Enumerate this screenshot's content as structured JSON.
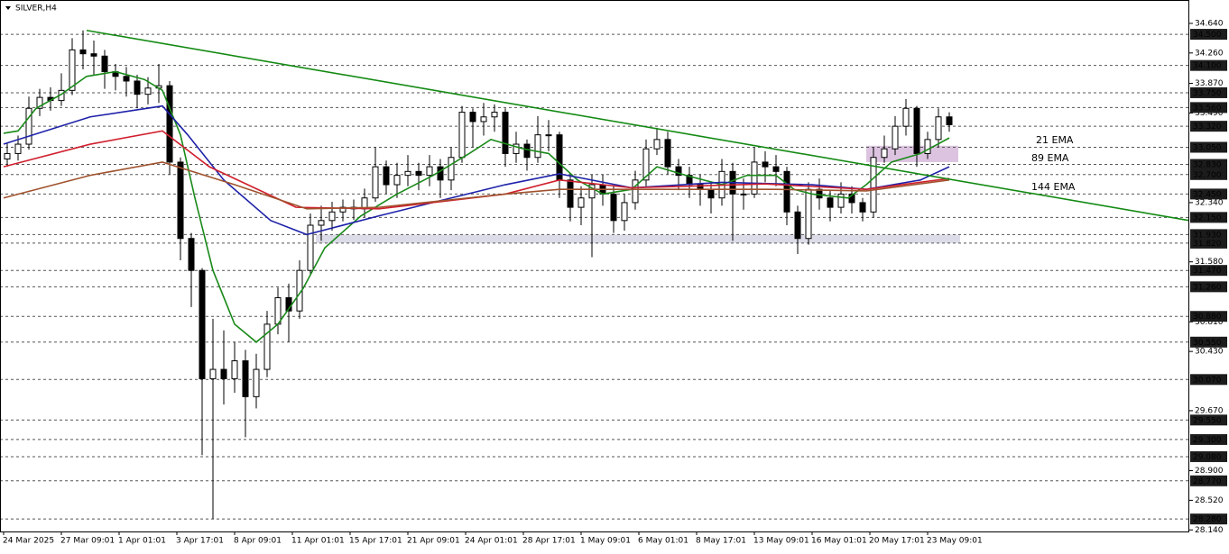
{
  "chart_data": {
    "type": "candlestick",
    "title": "SILVER,H4",
    "x": [
      1,
      4,
      7,
      10,
      13,
      16,
      19,
      22,
      25,
      28,
      31,
      34,
      37,
      40,
      43,
      46,
      49,
      52,
      55,
      58,
      61,
      64,
      67,
      70,
      73,
      76,
      79,
      82,
      85,
      88,
      91,
      94,
      97,
      100,
      103,
      106,
      109,
      112,
      115,
      118,
      121,
      124,
      127,
      130,
      133,
      136,
      139,
      142,
      145,
      148,
      151,
      154,
      157,
      160,
      163,
      166,
      169,
      172,
      175,
      178,
      181,
      184,
      187,
      190,
      193,
      196,
      199,
      202,
      205,
      208,
      211,
      214,
      217,
      220,
      223,
      226,
      229,
      232,
      235,
      238,
      241,
      244,
      247,
      250,
      253,
      256,
      259,
      262
    ],
    "open": [
      32.9,
      32.97,
      33.09,
      33.55,
      33.69,
      33.65,
      33.78,
      34.3,
      34.25,
      34.22,
      34.02,
      33.96,
      33.9,
      33.73,
      33.81,
      33.84,
      32.86,
      31.88,
      31.47,
      30.08,
      30.2,
      30.08,
      30.31,
      29.85,
      30.2,
      30.78,
      31.12,
      30.95,
      31.47,
      32.05,
      32.11,
      32.22,
      32.28,
      32.26,
      32.4,
      32.8,
      32.57,
      32.69,
      32.74,
      32.69,
      32.8,
      32.63,
      32.92,
      33.5,
      33.38,
      33.44,
      33.5,
      32.97,
      33.09,
      32.92,
      33.21,
      33.21,
      32.63,
      32.28,
      32.4,
      32.57,
      32.45,
      32.11,
      32.34,
      32.63,
      33.03,
      33.15,
      32.8,
      32.69,
      32.57,
      32.51,
      32.4,
      32.74,
      32.45,
      32.45,
      32.86,
      32.8,
      32.74,
      32.22,
      31.88,
      32.51,
      32.4,
      32.28,
      32.45,
      32.34,
      32.22,
      32.92,
      33.03,
      33.32,
      33.55,
      32.97,
      33.15,
      33.44
    ],
    "high": [
      33.1,
      33.2,
      33.7,
      33.8,
      33.82,
      34.0,
      34.45,
      34.55,
      34.42,
      34.3,
      34.12,
      34.08,
      33.98,
      33.95,
      34.12,
      33.9,
      32.92,
      31.95,
      31.5,
      30.85,
      30.7,
      30.55,
      30.45,
      30.4,
      30.95,
      31.25,
      31.3,
      31.6,
      32.2,
      32.3,
      32.35,
      32.38,
      32.38,
      32.52,
      33.05,
      32.88,
      32.85,
      32.95,
      32.85,
      32.95,
      32.9,
      33.05,
      33.58,
      33.55,
      33.62,
      33.6,
      33.55,
      33.25,
      33.15,
      33.45,
      33.4,
      33.25,
      32.7,
      32.55,
      32.7,
      32.7,
      32.55,
      32.45,
      32.75,
      33.15,
      33.3,
      33.25,
      32.9,
      32.8,
      32.7,
      32.6,
      32.9,
      32.85,
      32.65,
      33.05,
      33.0,
      32.95,
      32.8,
      32.3,
      32.6,
      32.65,
      32.5,
      32.6,
      32.55,
      32.4,
      33.05,
      33.2,
      33.45,
      33.67,
      33.58,
      33.25,
      33.55,
      33.5
    ],
    "low": [
      32.8,
      32.88,
      33.02,
      33.45,
      33.52,
      33.58,
      33.72,
      34.05,
      33.98,
      33.8,
      33.78,
      33.7,
      33.55,
      33.6,
      33.62,
      32.7,
      31.6,
      31.0,
      29.1,
      28.28,
      29.75,
      29.9,
      29.33,
      29.7,
      30.1,
      30.65,
      30.55,
      30.85,
      31.4,
      31.85,
      31.98,
      32.1,
      32.12,
      32.15,
      32.35,
      32.45,
      32.4,
      32.55,
      32.5,
      32.55,
      32.4,
      32.5,
      32.85,
      33.05,
      33.2,
      33.25,
      32.8,
      32.85,
      32.75,
      32.85,
      33.0,
      32.4,
      32.1,
      32.05,
      31.64,
      32.3,
      31.95,
      31.98,
      32.25,
      32.55,
      32.95,
      32.7,
      32.5,
      32.4,
      32.3,
      32.2,
      32.3,
      31.85,
      32.25,
      32.4,
      32.6,
      32.55,
      32.05,
      31.68,
      31.8,
      32.25,
      32.1,
      32.2,
      32.2,
      32.1,
      32.15,
      32.85,
      32.95,
      33.2,
      32.8,
      32.9,
      33.05,
      33.25
    ],
    "close": [
      32.97,
      33.09,
      33.55,
      33.69,
      33.65,
      33.78,
      34.3,
      34.25,
      34.22,
      34.02,
      33.96,
      33.9,
      33.73,
      33.81,
      33.84,
      32.86,
      31.88,
      31.47,
      30.08,
      30.2,
      30.08,
      30.31,
      29.85,
      30.2,
      30.78,
      31.12,
      30.95,
      31.47,
      32.05,
      32.11,
      32.22,
      32.28,
      32.26,
      32.4,
      32.8,
      32.57,
      32.69,
      32.74,
      32.69,
      32.8,
      32.63,
      32.92,
      33.5,
      33.38,
      33.44,
      33.5,
      32.97,
      33.09,
      32.92,
      33.21,
      33.21,
      32.63,
      32.28,
      32.4,
      32.57,
      32.45,
      32.11,
      32.34,
      32.63,
      33.03,
      33.15,
      32.8,
      32.69,
      32.57,
      32.51,
      32.4,
      32.74,
      32.45,
      32.45,
      32.86,
      32.8,
      32.74,
      32.22,
      31.88,
      32.51,
      32.4,
      32.28,
      32.45,
      32.34,
      32.22,
      32.92,
      33.03,
      33.32,
      33.55,
      32.97,
      33.15,
      33.44,
      33.34
    ],
    "candle_color": "#000000",
    "up_fill": "#ffffff",
    "xlim": [
      -1,
      328.5
    ],
    "ylim": [
      28.12,
      34.94
    ],
    "xticks": [
      {
        "value": 0,
        "label": "24 Mar 2025"
      },
      {
        "value": 16,
        "label": "27 Mar 09:01"
      },
      {
        "value": 32,
        "label": "1 Apr 01:01"
      },
      {
        "value": 48,
        "label": "3 Apr 17:01"
      },
      {
        "value": 64,
        "label": "8 Apr 09:01"
      },
      {
        "value": 80,
        "label": "11 Apr 01:01"
      },
      {
        "value": 96,
        "label": "15 Apr 17:01"
      },
      {
        "value": 112,
        "label": "21 Apr 09:01"
      },
      {
        "value": 128,
        "label": "24 Apr 01:01"
      },
      {
        "value": 144,
        "label": "28 Apr 17:01"
      },
      {
        "value": 160,
        "label": "1 May 09:01"
      },
      {
        "value": 176,
        "label": "6 May 01:01"
      },
      {
        "value": 192,
        "label": "8 May 17:01"
      },
      {
        "value": 208,
        "label": "13 May 09:01"
      },
      {
        "value": 224,
        "label": "16 May 01:01"
      },
      {
        "value": 240,
        "label": "20 May 17:01"
      },
      {
        "value": 256,
        "label": "23 May 09:01"
      }
    ],
    "yticks": [
      {
        "value": 34.64,
        "label": "34.640"
      },
      {
        "value": 34.26,
        "label": "34.260"
      },
      {
        "value": 33.87,
        "label": "33.870"
      },
      {
        "value": 33.49,
        "label": "33.490"
      },
      {
        "value": 32.34,
        "label": "32.340"
      },
      {
        "value": 31.58,
        "label": "31.580"
      },
      {
        "value": 30.81,
        "label": "30.810"
      },
      {
        "value": 30.43,
        "label": "30.430"
      },
      {
        "value": 29.67,
        "label": "29.670"
      },
      {
        "value": 28.9,
        "label": "28.900"
      },
      {
        "value": 28.52,
        "label": "28.520"
      },
      {
        "value": 28.14,
        "label": "28.140"
      }
    ],
    "levels": [
      {
        "value": 34.5,
        "label": "34.500"
      },
      {
        "value": 34.1,
        "label": "34.100"
      },
      {
        "value": 33.75,
        "label": "33.750"
      },
      {
        "value": 33.56,
        "label": "33.560"
      },
      {
        "value": 33.32,
        "label": "33.320"
      },
      {
        "value": 33.05,
        "label": "33.050"
      },
      {
        "value": 32.83,
        "label": "32.830"
      },
      {
        "value": 32.7,
        "label": "32.700"
      },
      {
        "value": 32.45,
        "label": "32.450"
      },
      {
        "value": 32.15,
        "label": "32.150"
      },
      {
        "value": 31.93,
        "label": "31.930"
      },
      {
        "value": 31.82,
        "label": "31.820"
      },
      {
        "value": 31.47,
        "label": "31.470"
      },
      {
        "value": 31.26,
        "label": "31.260"
      },
      {
        "value": 30.88,
        "label": "30.880"
      },
      {
        "value": 30.55,
        "label": "30.550"
      },
      {
        "value": 30.07,
        "label": "30.070"
      },
      {
        "value": 29.55,
        "label": "29.550"
      },
      {
        "value": 29.3,
        "label": "29.300"
      },
      {
        "value": 29.08,
        "label": "29.080"
      },
      {
        "value": 28.77,
        "label": "28.770"
      },
      {
        "value": 28.28,
        "label": "28.280"
      }
    ],
    "series": [
      {
        "name": "21 EMA",
        "color": "#1a8a1a",
        "x": [
          0,
          4,
          9,
          16,
          23,
          31,
          39,
          44,
          49,
          53,
          58,
          64,
          70,
          76,
          83,
          89,
          99,
          109,
          119,
          129,
          135,
          144,
          151,
          159,
          166,
          174,
          181,
          189,
          199,
          206,
          214,
          219,
          224,
          234,
          239,
          246,
          254,
          262
        ],
        "values": [
          33.23,
          33.26,
          33.55,
          33.73,
          33.96,
          34.02,
          33.92,
          33.78,
          33.21,
          32.4,
          31.47,
          30.78,
          30.55,
          30.78,
          31.24,
          31.76,
          32.17,
          32.45,
          32.69,
          32.97,
          33.15,
          33.03,
          32.97,
          32.63,
          32.45,
          32.51,
          32.8,
          32.69,
          32.57,
          32.69,
          32.69,
          32.51,
          32.45,
          32.4,
          32.57,
          32.86,
          32.97,
          33.17
        ]
      },
      {
        "name": "89 EMA",
        "color": "#1e22a8",
        "x": [
          0,
          24,
          44,
          51,
          61,
          74,
          84,
          104,
          124,
          139,
          154,
          174,
          199,
          224,
          239,
          254,
          262
        ],
        "values": [
          33.09,
          33.44,
          33.58,
          33.21,
          32.63,
          32.11,
          31.93,
          32.17,
          32.4,
          32.57,
          32.71,
          32.53,
          32.6,
          32.57,
          32.51,
          32.63,
          32.8
        ]
      },
      {
        "name": "144 EMA",
        "color": "#d0202e",
        "x": [
          0,
          24,
          44,
          57,
          81,
          104,
          139,
          154,
          174,
          211,
          239,
          262
        ],
        "values": [
          32.8,
          33.09,
          33.26,
          32.8,
          32.28,
          32.26,
          32.45,
          32.63,
          32.53,
          32.58,
          32.51,
          32.65
        ]
      },
      {
        "color": "#a0522d",
        "x": [
          0,
          24,
          44,
          64,
          84,
          104,
          139,
          154,
          214,
          239,
          262
        ],
        "values": [
          32.4,
          32.69,
          32.86,
          32.57,
          32.26,
          32.28,
          32.45,
          32.51,
          32.51,
          32.49,
          32.63
        ]
      }
    ],
    "trendline": {
      "x": [
        23,
        328.5
      ],
      "values": [
        34.55,
        32.11
      ],
      "color": "#138a13"
    },
    "zones": [
      {
        "x": [
          239,
          264.5
        ],
        "y": [
          32.86,
          33.07
        ],
        "color": "#dcc4e0"
      },
      {
        "x": [
          86.5,
          265
        ],
        "y": [
          31.82,
          31.93
        ],
        "color": "#dcdce8"
      }
    ]
  }
}
